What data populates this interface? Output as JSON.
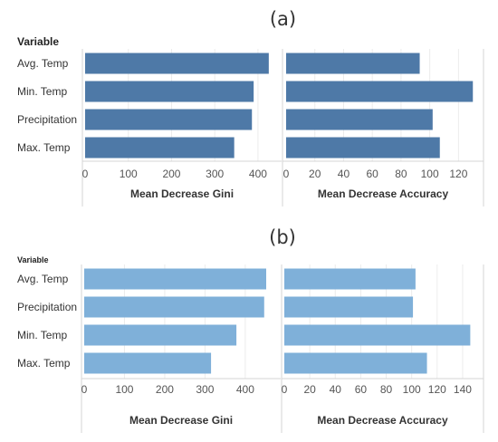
{
  "chart_data": [
    {
      "type": "bar",
      "orientation": "horizontal",
      "panel_label": "(a)",
      "row_header": "Variable",
      "categories": [
        "Avg. Temp",
        "Min. Temp",
        "Precipitation",
        "Max. Temp"
      ],
      "bar_color": "#4e79a7",
      "grid": true,
      "facets": [
        {
          "xlabel": "Mean Decrease Gini",
          "xlim": [
            0,
            440
          ],
          "ticks": [
            0,
            100,
            200,
            300,
            400
          ],
          "values": [
            425,
            390,
            386,
            345
          ]
        },
        {
          "xlabel": "Mean Decrease Accuracy",
          "xlim": [
            0,
            133
          ],
          "ticks": [
            0,
            20,
            40,
            60,
            80,
            100,
            120
          ],
          "values": [
            93,
            130,
            102,
            107
          ]
        }
      ]
    },
    {
      "type": "bar",
      "orientation": "horizontal",
      "panel_label": "(b)",
      "row_header": "Variable",
      "categories": [
        "Avg. Temp",
        "Precipitation",
        "Min. Temp",
        "Max. Temp"
      ],
      "bar_color": "#7fb0d9",
      "grid": true,
      "facets": [
        {
          "xlabel": "Mean Decrease Gini",
          "xlim": [
            0,
            470
          ],
          "ticks": [
            0,
            100,
            200,
            300,
            400
          ],
          "values": [
            452,
            447,
            378,
            315
          ]
        },
        {
          "xlabel": "Mean Decrease Accuracy",
          "xlim": [
            0,
            150
          ],
          "ticks": [
            0,
            20,
            40,
            60,
            80,
            100,
            120,
            140
          ],
          "values": [
            103,
            101,
            146,
            112
          ]
        }
      ]
    }
  ]
}
